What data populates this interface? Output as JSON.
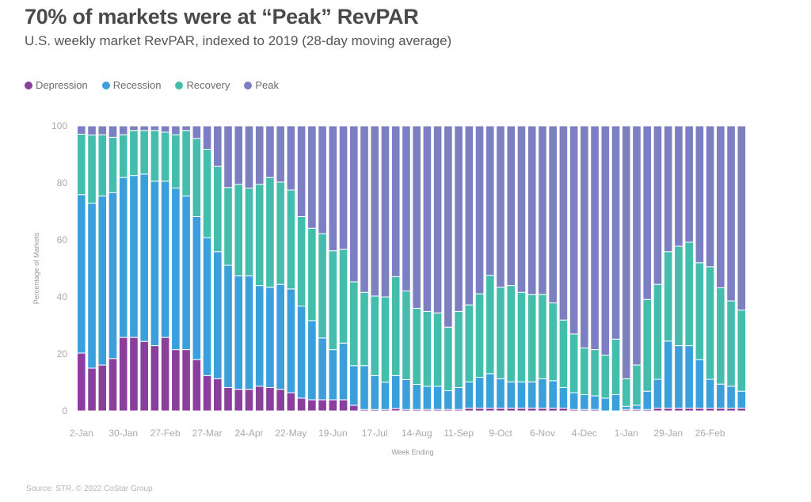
{
  "header": {
    "title": "70% of markets were at “Peak” RevPAR",
    "subtitle": "U.S. weekly market RevPAR, indexed to 2019 (28-day moving average)"
  },
  "footer": {
    "source": "Source: STR. © 2022 CoStar Group"
  },
  "legend": [
    {
      "label": "Depression",
      "color": "#8b3f9c"
    },
    {
      "label": "Recession",
      "color": "#3a9fdb"
    },
    {
      "label": "Recovery",
      "color": "#44bdad"
    },
    {
      "label": "Peak",
      "color": "#7c7fc1"
    }
  ],
  "chart_data": {
    "type": "bar",
    "stacked": true,
    "title": "70% of markets were at “Peak” RevPAR",
    "subtitle": "U.S. weekly market RevPAR, indexed to 2019 (28-day moving average)",
    "xlabel": "Week Ending",
    "ylabel": "Percentage of Markets",
    "ylim": [
      0,
      100
    ],
    "yticks": [
      0,
      20,
      40,
      60,
      80,
      100
    ],
    "grid": false,
    "legend_position": "top-left",
    "bar_count": 64,
    "x_tick_labels": [
      {
        "index": 0,
        "label": "2-Jan"
      },
      {
        "index": 4,
        "label": "30-Jan"
      },
      {
        "index": 8,
        "label": "27-Feb"
      },
      {
        "index": 12,
        "label": "27-Mar"
      },
      {
        "index": 16,
        "label": "24-Apr"
      },
      {
        "index": 20,
        "label": "22-May"
      },
      {
        "index": 24,
        "label": "19-Jun"
      },
      {
        "index": 28,
        "label": "17-Jul"
      },
      {
        "index": 32,
        "label": "14-Aug"
      },
      {
        "index": 36,
        "label": "11-Sep"
      },
      {
        "index": 40,
        "label": "9-Oct"
      },
      {
        "index": 44,
        "label": "6-Nov"
      },
      {
        "index": 48,
        "label": "4-Dec"
      },
      {
        "index": 52,
        "label": "1-Jan"
      },
      {
        "index": 56,
        "label": "29-Jan"
      },
      {
        "index": 60,
        "label": "26-Feb"
      }
    ],
    "series": [
      {
        "name": "Depression",
        "color": "#8b3f9c",
        "values": [
          20.3,
          15.0,
          16.1,
          18.4,
          25.8,
          25.8,
          24.4,
          22.9,
          25.8,
          21.5,
          21.5,
          18.0,
          12.4,
          11.3,
          8.2,
          7.6,
          7.6,
          8.7,
          8.2,
          7.6,
          6.4,
          4.5,
          3.9,
          3.9,
          3.9,
          3.9,
          2.0,
          0.5,
          0.5,
          0.5,
          0.9,
          0.5,
          0.5,
          0.5,
          0.5,
          0.5,
          0.5,
          1.0,
          1.0,
          1.0,
          1.0,
          1.0,
          1.0,
          1.0,
          1.0,
          1.0,
          1.0,
          0.5,
          0.5,
          0.5,
          0.0,
          0.0,
          0.5,
          0.5,
          0.5,
          1.0,
          1.0,
          1.0,
          1.0,
          1.0,
          1.0,
          1.0,
          1.0,
          1.0
        ]
      },
      {
        "name": "Recession",
        "color": "#3a9fdb",
        "values": [
          55.6,
          57.9,
          59.3,
          58.2,
          56.1,
          56.8,
          58.7,
          57.7,
          54.8,
          56.7,
          53.9,
          50.2,
          48.4,
          44.6,
          42.9,
          39.8,
          39.8,
          35.3,
          35.2,
          36.8,
          36.4,
          32.3,
          27.8,
          21.7,
          17.6,
          19.9,
          13.9,
          15.4,
          11.9,
          9.6,
          11.5,
          10.5,
          8.8,
          8.2,
          8.2,
          6.6,
          7.7,
          9.2,
          10.8,
          12.1,
          10.3,
          9.2,
          9.2,
          9.2,
          10.3,
          9.6,
          7.2,
          5.9,
          5.2,
          4.8,
          4.5,
          5.7,
          1.1,
          1.5,
          6.4,
          10.1,
          23.5,
          21.9,
          21.9,
          17.0,
          10.1,
          8.4,
          7.7,
          5.9
        ]
      },
      {
        "name": "Recovery",
        "color": "#44bdad",
        "values": [
          21.2,
          23.9,
          21.5,
          19.4,
          15.0,
          15.8,
          15.3,
          17.8,
          17.2,
          18.7,
          23.0,
          27.4,
          31.0,
          29.9,
          27.3,
          32.1,
          30.8,
          35.5,
          38.5,
          35.9,
          34.7,
          31.4,
          32.4,
          36.6,
          34.7,
          32.9,
          29.4,
          25.7,
          27.9,
          29.9,
          34.7,
          31.1,
          26.7,
          26.2,
          25.7,
          22.3,
          26.7,
          27.0,
          29.3,
          34.5,
          32.1,
          33.8,
          31.4,
          30.7,
          29.6,
          27.3,
          23.7,
          20.6,
          16.4,
          16.2,
          15.1,
          19.5,
          9.7,
          14.1,
          32.2,
          33.3,
          31.4,
          34.9,
          36.3,
          34.0,
          39.5,
          33.8,
          29.9,
          28.5
        ]
      },
      {
        "name": "Peak",
        "color": "#7c7fc1",
        "values": [
          2.9,
          3.2,
          3.1,
          4.0,
          3.1,
          1.6,
          1.6,
          1.6,
          2.2,
          3.1,
          1.6,
          4.4,
          8.2,
          14.2,
          21.6,
          20.5,
          21.8,
          20.5,
          18.1,
          19.7,
          22.5,
          31.8,
          35.9,
          37.8,
          43.8,
          43.3,
          54.7,
          58.4,
          59.7,
          60.0,
          52.9,
          57.9,
          64.0,
          65.1,
          65.6,
          70.6,
          65.1,
          62.8,
          58.9,
          52.4,
          56.6,
          56.0,
          58.4,
          59.1,
          59.1,
          62.1,
          68.1,
          73.0,
          77.9,
          78.5,
          80.4,
          74.8,
          88.7,
          83.9,
          60.9,
          55.6,
          44.1,
          42.2,
          40.8,
          48.0,
          49.4,
          56.8,
          61.4,
          64.6
        ]
      }
    ]
  }
}
